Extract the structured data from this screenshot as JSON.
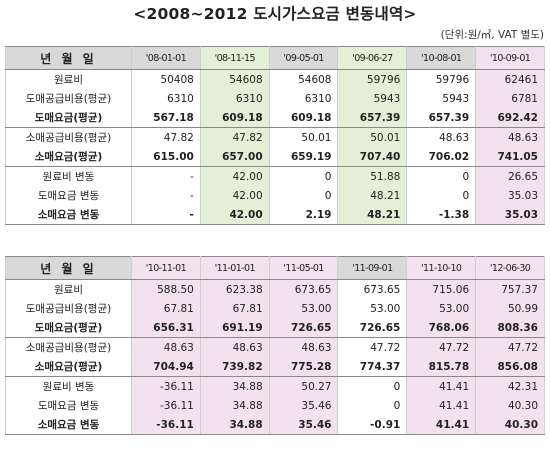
{
  "title": "<2008~2012 도시가스요금 변동내역>",
  "unit_note": "(단위:원/㎥, VAT 별도)",
  "colors": {
    "header_gray": "#d9d9d9",
    "green_highlight": "#e3efd7",
    "pink_highlight": "#f4e1ee"
  },
  "table1": {
    "header_label": "년 월 일",
    "dates": [
      "'08-01-01",
      "'08-11-15",
      "'09-05-01",
      "'09-06-27",
      "'10-08-01",
      "'10-09-01"
    ],
    "rows": [
      {
        "label": "원료비",
        "values": [
          "50408",
          "54608",
          "54608",
          "59796",
          "59796",
          "62461"
        ]
      },
      {
        "label": "도매공급비용(평균)",
        "values": [
          "6310",
          "6310",
          "6310",
          "5943",
          "5943",
          "6781"
        ]
      },
      {
        "label": "도매요금(평균)",
        "values": [
          "567.18",
          "609.18",
          "609.18",
          "657.39",
          "657.39",
          "692.42"
        ]
      },
      {
        "label": "소매공급비용(평균)",
        "values": [
          "47.82",
          "47.82",
          "50.01",
          "50.01",
          "48.63",
          "48.63"
        ]
      },
      {
        "label": "소매요금(평균)",
        "values": [
          "615.00",
          "657.00",
          "659.19",
          "707.40",
          "706.02",
          "741.05"
        ]
      },
      {
        "label": "원료비 변동",
        "values": [
          "-",
          "42.00",
          "0",
          "51.88",
          "0",
          "26.65"
        ]
      },
      {
        "label": "도매요금 변동",
        "values": [
          "-",
          "42.00",
          "0",
          "48.21",
          "0",
          "35.03"
        ]
      },
      {
        "label": "소매요금 변동",
        "values": [
          "-",
          "42.00",
          "2.19",
          "48.21",
          "-1.38",
          "35.03"
        ]
      }
    ]
  },
  "table2": {
    "header_label": "년 월 일",
    "dates": [
      "'10-11-01",
      "'11-01-01",
      "'11-05-01",
      "'11-09-01",
      "'11-10-10",
      "'12-06-30"
    ],
    "rows": [
      {
        "label": "원료비",
        "values": [
          "588.50",
          "623.38",
          "673.65",
          "673.65",
          "715.06",
          "757.37"
        ]
      },
      {
        "label": "도매공급비용(평균)",
        "values": [
          "67.81",
          "67.81",
          "53.00",
          "53.00",
          "53.00",
          "50.99"
        ]
      },
      {
        "label": "도매요금(평균)",
        "values": [
          "656.31",
          "691.19",
          "726.65",
          "726.65",
          "768.06",
          "808.36"
        ]
      },
      {
        "label": "소매공급비용(평균)",
        "values": [
          "48.63",
          "48.63",
          "48.63",
          "47.72",
          "47.72",
          "47.72"
        ]
      },
      {
        "label": "소매요금(평균)",
        "values": [
          "704.94",
          "739.82",
          "775.28",
          "774.37",
          "815.78",
          "856.08"
        ]
      },
      {
        "label": "원료비 변동",
        "values": [
          "-36.11",
          "34.88",
          "50.27",
          "0",
          "41.41",
          "42.31"
        ]
      },
      {
        "label": "도매요금 변동",
        "values": [
          "-36.11",
          "34.88",
          "35.46",
          "0",
          "41.41",
          "40.30"
        ]
      },
      {
        "label": "소매요금 변동",
        "values": [
          "-36.11",
          "34.88",
          "35.46",
          "-0.91",
          "41.41",
          "40.30"
        ]
      }
    ]
  }
}
